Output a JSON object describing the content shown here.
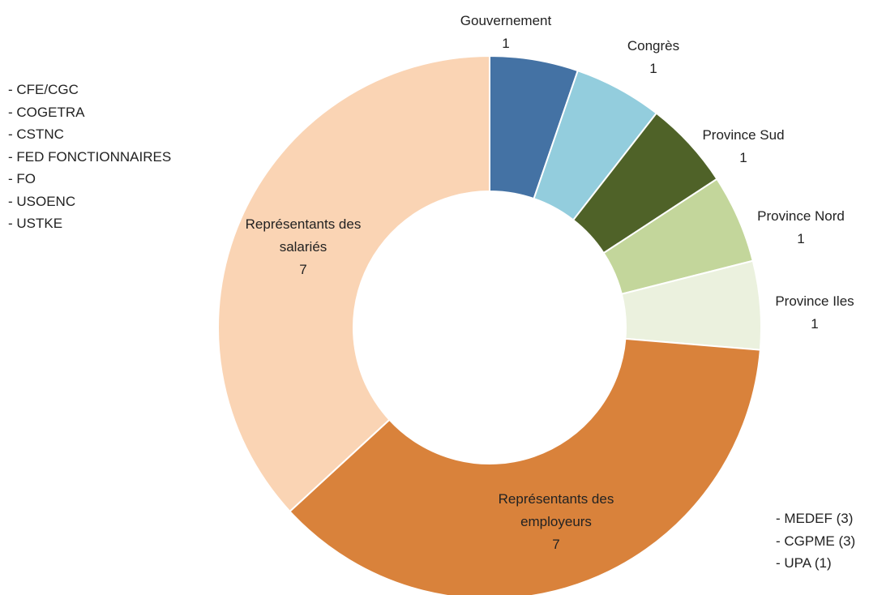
{
  "chart_data": {
    "type": "donut",
    "title": "",
    "slices": [
      {
        "label": "Gouvernement",
        "value": 1,
        "color": "#4472a4"
      },
      {
        "label": "Congrès",
        "value": 1,
        "color": "#93cddd"
      },
      {
        "label": "Province Sud",
        "value": 1,
        "color": "#4f6228"
      },
      {
        "label": "Province Nord",
        "value": 1,
        "color": "#c3d69b"
      },
      {
        "label": "Province Iles",
        "value": 1,
        "color": "#ebf1de"
      },
      {
        "label": "Représentants des employeurs",
        "value": 7,
        "color": "#d9823b"
      },
      {
        "label": "Représentants des salariés",
        "value": 7,
        "color": "#fad4b4"
      }
    ],
    "value_labels": [
      "1",
      "1",
      "1",
      "1",
      "1",
      "7",
      "7"
    ]
  },
  "notes": {
    "employees_unions": [
      "- CFE/CGC",
      "- COGETRA",
      "- CSTNC",
      "- FED FONCTIONNAIRES",
      "- FO",
      "- USOENC",
      "- USTKE"
    ],
    "employer_unions": [
      "- MEDEF (3)",
      "- CGPME (3)",
      "- UPA (1)"
    ]
  }
}
